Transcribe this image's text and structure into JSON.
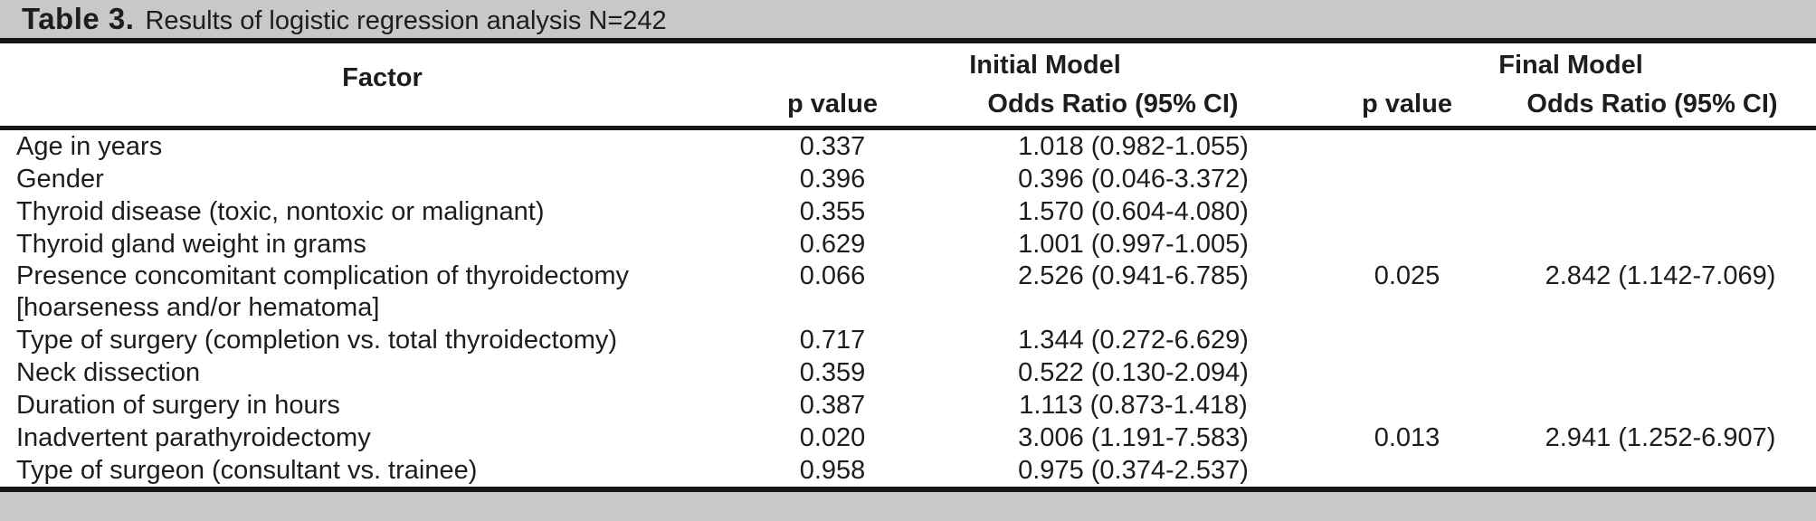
{
  "title": {
    "label": "Table 3.",
    "text": "Results of logistic regression analysis N=242"
  },
  "table": {
    "header": {
      "factor": "Factor",
      "initial_model": "Initial Model",
      "final_model": "Final Model",
      "initial_p": "p value",
      "initial_or": "Odds Ratio (95% CI)",
      "final_p": "p value",
      "final_or": "Odds Ratio (95% CI)"
    },
    "rows": [
      {
        "factor": "Age in years",
        "initial_p": "0.337",
        "initial_or": "1.018 (0.982-1.055)",
        "final_p": "",
        "final_or": ""
      },
      {
        "factor": "Gender",
        "initial_p": "0.396",
        "initial_or": "0.396 (0.046-3.372)",
        "final_p": "",
        "final_or": ""
      },
      {
        "factor": "Thyroid disease (toxic, nontoxic or malignant)",
        "initial_p": "0.355",
        "initial_or": "1.570 (0.604-4.080)",
        "final_p": "",
        "final_or": ""
      },
      {
        "factor": "Thyroid gland weight in grams",
        "initial_p": "0.629",
        "initial_or": "1.001 (0.997-1.005)",
        "final_p": "",
        "final_or": ""
      },
      {
        "factor": "Presence concomitant complication of thyroidectomy",
        "factor_line2": "[hoarseness and/or hematoma]",
        "initial_p": "0.066",
        "initial_or": "2.526 (0.941-6.785)",
        "final_p": "0.025",
        "final_or": "2.842 (1.142-7.069)"
      },
      {
        "factor": "Type of surgery (completion vs. total thyroidectomy)",
        "initial_p": "0.717",
        "initial_or": "1.344 (0.272-6.629)",
        "final_p": "",
        "final_or": ""
      },
      {
        "factor": "Neck dissection",
        "initial_p": "0.359",
        "initial_or": "0.522 (0.130-2.094)",
        "final_p": "",
        "final_or": ""
      },
      {
        "factor": "Duration of surgery in hours",
        "initial_p": "0.387",
        "initial_or": "1.113 (0.873-1.418)",
        "final_p": "",
        "final_or": ""
      },
      {
        "factor": "Inadvertent parathyroidectomy",
        "initial_p": "0.020",
        "initial_or": "3.006 (1.191-7.583)",
        "final_p": "0.013",
        "final_or": "2.941 (1.252-6.907)"
      },
      {
        "factor": "Type of surgeon (consultant vs. trainee)",
        "initial_p": "0.958",
        "initial_or": "0.975 (0.374-2.537)",
        "final_p": "",
        "final_or": ""
      }
    ]
  },
  "colors": {
    "caption_bar_bg": "#c8c8c8",
    "footer_bar_bg": "#c8c8c8",
    "rule": "#161616",
    "text": "#1d1d1d"
  }
}
